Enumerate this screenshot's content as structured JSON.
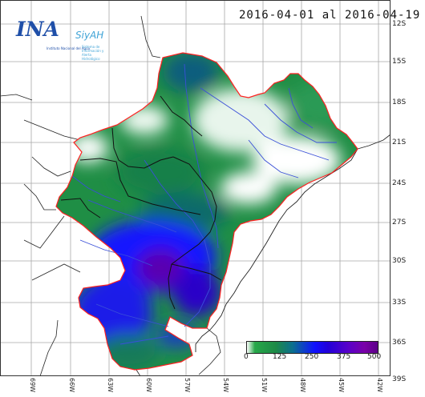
{
  "title": "2016-04-01 al 2016-04-19",
  "logo": {
    "main": "INA",
    "secondary": "SiyAH",
    "sub_left": "Instituto Nacional del Agua",
    "sub_right": "Sistema de Información y Alerta Hidrológico"
  },
  "lat_labels": [
    "12S",
    "15S",
    "18S",
    "21S",
    "24S",
    "27S",
    "30S",
    "33S",
    "36S",
    "39S"
  ],
  "lon_labels": [
    "69W",
    "66W",
    "63W",
    "60W",
    "57W",
    "54W",
    "51W",
    "48W",
    "45W",
    "42W"
  ],
  "colorbar": {
    "ticks": [
      "0",
      "125",
      "250",
      "375",
      "500"
    ],
    "range": [
      0,
      500
    ]
  },
  "colors": {
    "basin_border": "#ff2020",
    "rivers": "#3a4fd8",
    "grid": "#9a9a9a",
    "coast": "#222222"
  }
}
